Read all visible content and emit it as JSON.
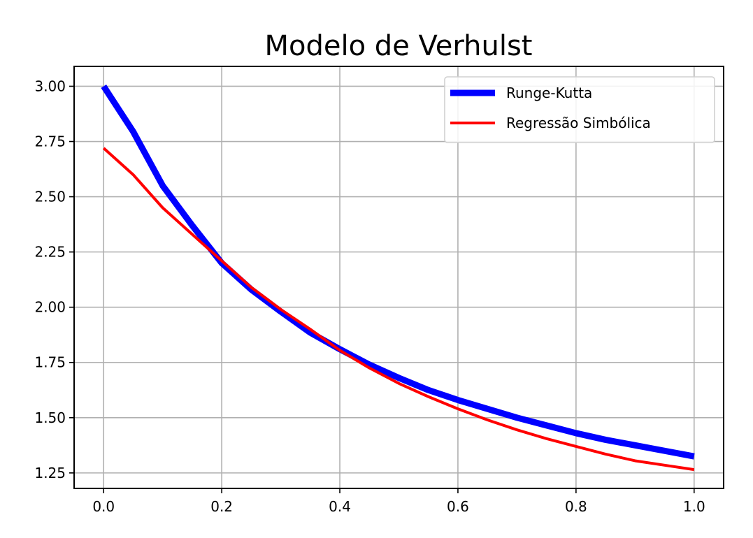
{
  "chart_data": {
    "type": "line",
    "title": "Modelo de Verhulst",
    "xlabel": "",
    "ylabel": "",
    "xlim": [
      -0.05,
      1.05
    ],
    "ylim": [
      1.18,
      3.09
    ],
    "grid": true,
    "legend_position": "top-right",
    "xticks": [
      0.0,
      0.2,
      0.4,
      0.6,
      0.8,
      1.0
    ],
    "xtick_labels": [
      "0.0",
      "0.2",
      "0.4",
      "0.6",
      "0.8",
      "1.0"
    ],
    "yticks": [
      1.25,
      1.5,
      1.75,
      2.0,
      2.25,
      2.5,
      2.75,
      3.0
    ],
    "ytick_labels": [
      "1.25",
      "1.50",
      "1.75",
      "2.00",
      "2.25",
      "2.50",
      "2.75",
      "3.00"
    ],
    "series": [
      {
        "name": "Runge-Kutta",
        "color": "#0000ff",
        "x": [
          0.0,
          0.05,
          0.1,
          0.15,
          0.2,
          0.25,
          0.3,
          0.35,
          0.4,
          0.45,
          0.5,
          0.55,
          0.6,
          0.65,
          0.7,
          0.75,
          0.8,
          0.85,
          0.9,
          0.95,
          1.0
        ],
        "y": [
          3.0,
          2.795,
          2.55,
          2.37,
          2.2,
          2.08,
          1.98,
          1.885,
          1.81,
          1.74,
          1.68,
          1.625,
          1.58,
          1.54,
          1.5,
          1.465,
          1.43,
          1.4,
          1.375,
          1.35,
          1.325
        ]
      },
      {
        "name": "Regressão Simbólica",
        "color": "#ff0000",
        "x": [
          0.0,
          0.05,
          0.1,
          0.15,
          0.2,
          0.25,
          0.3,
          0.35,
          0.4,
          0.45,
          0.5,
          0.55,
          0.6,
          0.65,
          0.7,
          0.75,
          0.8,
          0.85,
          0.9,
          0.95,
          1.0
        ],
        "y": [
          2.72,
          2.6,
          2.45,
          2.33,
          2.21,
          2.09,
          1.99,
          1.9,
          1.805,
          1.725,
          1.655,
          1.595,
          1.54,
          1.49,
          1.445,
          1.405,
          1.37,
          1.335,
          1.305,
          1.285,
          1.265
        ]
      }
    ]
  }
}
